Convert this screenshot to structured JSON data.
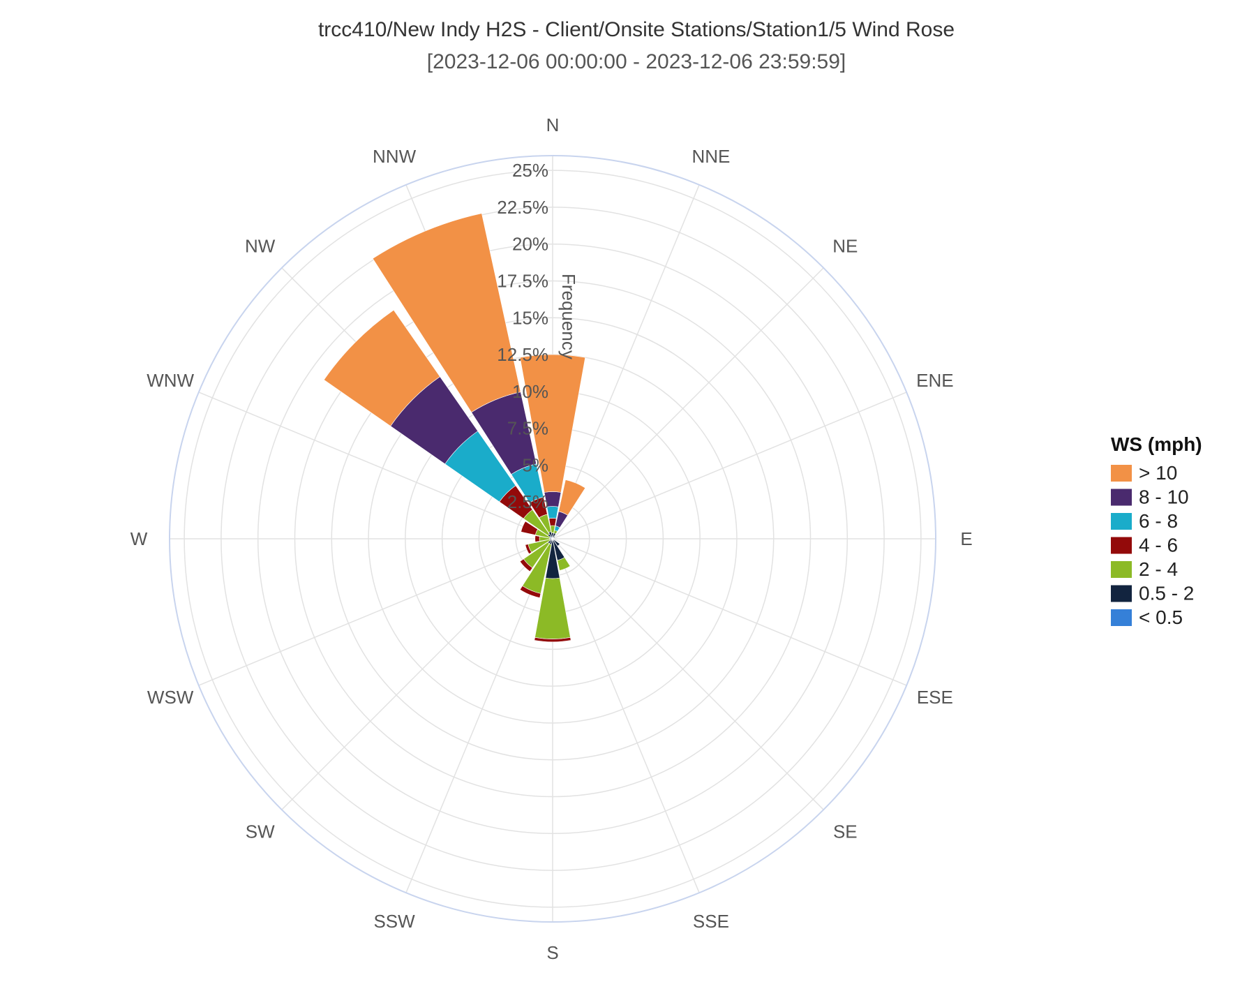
{
  "chart_data": {
    "type": "windrose",
    "title": "trcc410/New Indy H2S - Client/Onsite Stations/Station1/5 Wind Rose",
    "subtitle": "[2023-12-06 00:00:00 - 2023-12-06 23:59:59]",
    "radial_axis_label": "Frequency",
    "radial_ticks": [
      "2.5%",
      "5%",
      "7.5%",
      "10%",
      "12.5%",
      "15%",
      "17.5%",
      "20%",
      "22.5%",
      "25%"
    ],
    "radial_range": [
      0,
      26
    ],
    "grid": true,
    "legend_position": "right",
    "directions": [
      "N",
      "NNE",
      "NE",
      "ENE",
      "E",
      "ESE",
      "SE",
      "SSE",
      "S",
      "SSW",
      "SW",
      "WSW",
      "W",
      "WNW",
      "NW",
      "NNW"
    ],
    "legend_title": "WS (mph)",
    "series": [
      {
        "name": "< 0.5",
        "color": "#3580d8",
        "values": [
          0,
          0,
          0,
          0,
          0,
          0,
          0,
          0,
          0,
          0,
          0,
          0,
          0,
          0,
          0.2,
          0
        ]
      },
      {
        "name": "0.5 - 2",
        "color": "#12243f",
        "values": [
          0.4,
          0.4,
          0.2,
          0.1,
          0,
          0,
          0.6,
          1.5,
          2.7,
          0.4,
          0.4,
          0.2,
          0.2,
          0.2,
          0.2,
          0.5
        ]
      },
      {
        "name": "2 - 4",
        "color": "#8cba26",
        "values": [
          0.5,
          0.2,
          0,
          0,
          0,
          0,
          0,
          0.7,
          4.1,
          3.4,
          2.0,
          1.5,
          0.7,
          1.0,
          2.0,
          1.2
        ]
      },
      {
        "name": "4 - 6",
        "color": "#930a0a",
        "values": [
          0.5,
          0,
          0,
          0,
          0,
          0,
          0,
          0,
          0.2,
          0.3,
          0.3,
          0.2,
          0.3,
          1.0,
          2.0,
          1.2
        ]
      },
      {
        "name": "6 - 8",
        "color": "#1aacca",
        "values": [
          0.8,
          0.3,
          0,
          0,
          0,
          0,
          0,
          0,
          0,
          0,
          0,
          0,
          0,
          0,
          4.5,
          2.3
        ]
      },
      {
        "name": "8 - 10",
        "color": "#4a2a6e",
        "values": [
          1.0,
          1.0,
          0,
          0,
          0,
          0,
          0,
          0,
          0,
          0,
          0,
          0,
          0,
          0,
          4.5,
          5.0
        ]
      },
      {
        "name": "> 10",
        "color": "#f29146",
        "values": [
          9.3,
          2.2,
          0,
          0,
          0,
          0,
          0,
          0,
          0,
          0,
          0,
          0,
          0,
          0,
          5.5,
          12.4
        ]
      }
    ]
  }
}
